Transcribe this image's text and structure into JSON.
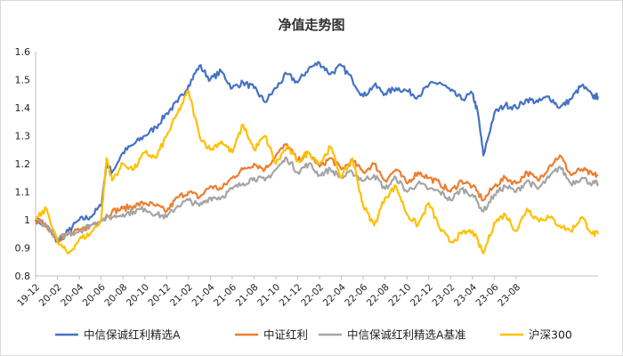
{
  "chart_data": {
    "type": "line",
    "title": "净值走势图",
    "xlabel": "",
    "ylabel": "",
    "ylim": [
      0.8,
      1.6
    ],
    "yticks": [
      "0.8",
      "0.9",
      "1",
      "1.1",
      "1.2",
      "1.3",
      "1.4",
      "1.5",
      "1.6"
    ],
    "xticks": [
      "19-12",
      "20-02",
      "20-04",
      "20-06",
      "20-08",
      "20-10",
      "20-12",
      "21-02",
      "21-04",
      "21-06",
      "21-08",
      "21-10",
      "21-12",
      "22-02",
      "22-04",
      "22-06",
      "22-08",
      "22-10",
      "22-12",
      "23-02",
      "23-04",
      "23-06",
      "23-08"
    ],
    "grid": false,
    "legend": "bottom",
    "series": [
      {
        "name": "中信保诚红利精选A",
        "color": "#4472C4",
        "points": [
          [
            0,
            1.0
          ],
          [
            1,
            0.98
          ],
          [
            2,
            0.92
          ],
          [
            3,
            0.96
          ],
          [
            4,
            1.0
          ],
          [
            5,
            1.01
          ],
          [
            6,
            1.05
          ],
          [
            6.5,
            1.2
          ],
          [
            7,
            1.17
          ],
          [
            8,
            1.24
          ],
          [
            9,
            1.27
          ],
          [
            10,
            1.3
          ],
          [
            11,
            1.33
          ],
          [
            12,
            1.38
          ],
          [
            13,
            1.42
          ],
          [
            14,
            1.48
          ],
          [
            15,
            1.55
          ],
          [
            16,
            1.5
          ],
          [
            17,
            1.53
          ],
          [
            18,
            1.47
          ],
          [
            19,
            1.49
          ],
          [
            20,
            1.47
          ],
          [
            21,
            1.42
          ],
          [
            22,
            1.47
          ],
          [
            23,
            1.52
          ],
          [
            24,
            1.49
          ],
          [
            25,
            1.54
          ],
          [
            26,
            1.56
          ],
          [
            27,
            1.52
          ],
          [
            28,
            1.55
          ],
          [
            29,
            1.5
          ],
          [
            30,
            1.44
          ],
          [
            31,
            1.48
          ],
          [
            32,
            1.45
          ],
          [
            33,
            1.47
          ],
          [
            34,
            1.46
          ],
          [
            35,
            1.44
          ],
          [
            36,
            1.48
          ],
          [
            37,
            1.49
          ],
          [
            38,
            1.46
          ],
          [
            39,
            1.43
          ],
          [
            40,
            1.45
          ],
          [
            40.5,
            1.38
          ],
          [
            41,
            1.23
          ],
          [
            42,
            1.38
          ],
          [
            43,
            1.41
          ],
          [
            44,
            1.4
          ],
          [
            45,
            1.43
          ],
          [
            46,
            1.42
          ],
          [
            47,
            1.44
          ],
          [
            48,
            1.4
          ],
          [
            49,
            1.43
          ],
          [
            50,
            1.48
          ],
          [
            51,
            1.44
          ],
          [
            51.5,
            1.44
          ]
        ]
      },
      {
        "name": "中证红利",
        "color": "#ED7D31",
        "points": [
          [
            0,
            1.0
          ],
          [
            1,
            0.98
          ],
          [
            2,
            0.93
          ],
          [
            3,
            0.95
          ],
          [
            4,
            0.96
          ],
          [
            5,
            0.98
          ],
          [
            6,
            1.0
          ],
          [
            7,
            1.03
          ],
          [
            8,
            1.04
          ],
          [
            9,
            1.05
          ],
          [
            10,
            1.06
          ],
          [
            11,
            1.05
          ],
          [
            12,
            1.03
          ],
          [
            13,
            1.08
          ],
          [
            14,
            1.1
          ],
          [
            15,
            1.08
          ],
          [
            16,
            1.12
          ],
          [
            17,
            1.11
          ],
          [
            18,
            1.15
          ],
          [
            19,
            1.18
          ],
          [
            20,
            1.2
          ],
          [
            21,
            1.18
          ],
          [
            22,
            1.23
          ],
          [
            23,
            1.27
          ],
          [
            24,
            1.21
          ],
          [
            25,
            1.24
          ],
          [
            26,
            1.19
          ],
          [
            27,
            1.22
          ],
          [
            28,
            1.18
          ],
          [
            29,
            1.21
          ],
          [
            30,
            1.17
          ],
          [
            31,
            1.2
          ],
          [
            32,
            1.14
          ],
          [
            33,
            1.18
          ],
          [
            34,
            1.13
          ],
          [
            35,
            1.17
          ],
          [
            36,
            1.15
          ],
          [
            37,
            1.13
          ],
          [
            38,
            1.1
          ],
          [
            39,
            1.14
          ],
          [
            40,
            1.12
          ],
          [
            41,
            1.07
          ],
          [
            42,
            1.12
          ],
          [
            43,
            1.15
          ],
          [
            44,
            1.13
          ],
          [
            45,
            1.17
          ],
          [
            46,
            1.14
          ],
          [
            47,
            1.19
          ],
          [
            48,
            1.23
          ],
          [
            49,
            1.16
          ],
          [
            50,
            1.18
          ],
          [
            51,
            1.16
          ],
          [
            51.5,
            1.16
          ]
        ]
      },
      {
        "name": "中信保诚红利精选A基准",
        "color": "#A5A5A5",
        "points": [
          [
            0,
            1.0
          ],
          [
            1,
            0.98
          ],
          [
            2,
            0.93
          ],
          [
            3,
            0.95
          ],
          [
            4,
            0.96
          ],
          [
            5,
            0.98
          ],
          [
            6,
            1.0
          ],
          [
            7,
            1.01
          ],
          [
            8,
            1.02
          ],
          [
            9,
            1.03
          ],
          [
            10,
            1.04
          ],
          [
            11,
            1.02
          ],
          [
            12,
            1.01
          ],
          [
            13,
            1.05
          ],
          [
            14,
            1.07
          ],
          [
            15,
            1.05
          ],
          [
            16,
            1.08
          ],
          [
            17,
            1.08
          ],
          [
            18,
            1.11
          ],
          [
            19,
            1.13
          ],
          [
            20,
            1.15
          ],
          [
            21,
            1.14
          ],
          [
            22,
            1.18
          ],
          [
            23,
            1.22
          ],
          [
            24,
            1.17
          ],
          [
            25,
            1.2
          ],
          [
            26,
            1.16
          ],
          [
            27,
            1.18
          ],
          [
            28,
            1.15
          ],
          [
            29,
            1.17
          ],
          [
            30,
            1.14
          ],
          [
            31,
            1.16
          ],
          [
            32,
            1.11
          ],
          [
            33,
            1.15
          ],
          [
            34,
            1.1
          ],
          [
            35,
            1.13
          ],
          [
            36,
            1.11
          ],
          [
            37,
            1.1
          ],
          [
            38,
            1.07
          ],
          [
            39,
            1.11
          ],
          [
            40,
            1.09
          ],
          [
            41,
            1.03
          ],
          [
            42,
            1.09
          ],
          [
            43,
            1.12
          ],
          [
            44,
            1.1
          ],
          [
            45,
            1.14
          ],
          [
            46,
            1.11
          ],
          [
            47,
            1.15
          ],
          [
            48,
            1.19
          ],
          [
            49,
            1.13
          ],
          [
            50,
            1.15
          ],
          [
            51,
            1.13
          ],
          [
            51.5,
            1.13
          ]
        ]
      },
      {
        "name": "沪深300",
        "color": "#FFC000",
        "points": [
          [
            0,
            1.0
          ],
          [
            1,
            1.04
          ],
          [
            2,
            0.92
          ],
          [
            3,
            0.88
          ],
          [
            4,
            0.93
          ],
          [
            5,
            0.95
          ],
          [
            6,
            1.0
          ],
          [
            6.5,
            1.22
          ],
          [
            7,
            1.14
          ],
          [
            8,
            1.2
          ],
          [
            9,
            1.18
          ],
          [
            10,
            1.24
          ],
          [
            11,
            1.22
          ],
          [
            12,
            1.3
          ],
          [
            13,
            1.38
          ],
          [
            14,
            1.46
          ],
          [
            15,
            1.3
          ],
          [
            16,
            1.25
          ],
          [
            17,
            1.28
          ],
          [
            18,
            1.24
          ],
          [
            19,
            1.34
          ],
          [
            20,
            1.25
          ],
          [
            21,
            1.3
          ],
          [
            22,
            1.2
          ],
          [
            23,
            1.26
          ],
          [
            24,
            1.21
          ],
          [
            25,
            1.24
          ],
          [
            26,
            1.2
          ],
          [
            27,
            1.26
          ],
          [
            28,
            1.15
          ],
          [
            29,
            1.22
          ],
          [
            30,
            1.05
          ],
          [
            31,
            0.98
          ],
          [
            32,
            1.08
          ],
          [
            33,
            1.12
          ],
          [
            34,
            1.02
          ],
          [
            35,
            0.98
          ],
          [
            36,
            1.06
          ],
          [
            37,
            0.97
          ],
          [
            38,
            0.92
          ],
          [
            39,
            0.95
          ],
          [
            40,
            0.96
          ],
          [
            41,
            0.88
          ],
          [
            42,
            0.99
          ],
          [
            43,
            1.02
          ],
          [
            44,
            0.96
          ],
          [
            45,
            1.04
          ],
          [
            46,
            1.0
          ],
          [
            47,
            1.01
          ],
          [
            48,
            0.98
          ],
          [
            49,
            0.96
          ],
          [
            50,
            1.01
          ],
          [
            51,
            0.95
          ],
          [
            51.5,
            0.95
          ]
        ]
      }
    ]
  }
}
